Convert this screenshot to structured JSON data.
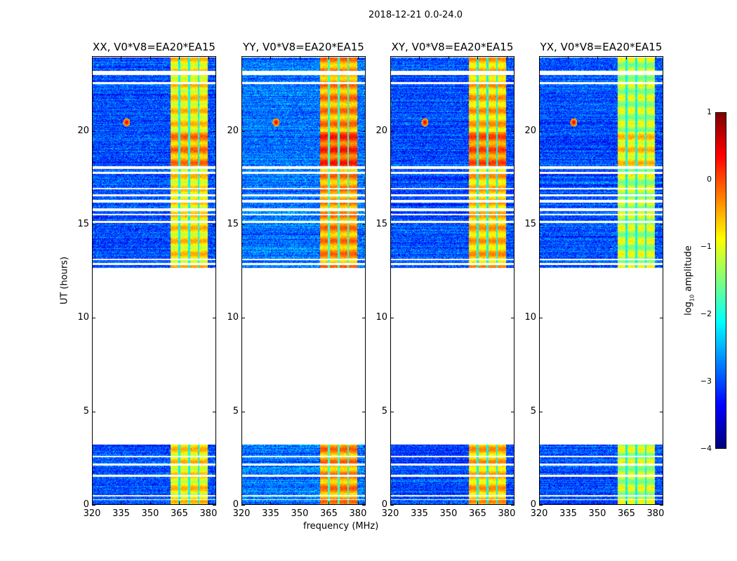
{
  "figure_title": "2018-12-21 0.0-24.0",
  "chart_data": {
    "type": "heatmap",
    "title": "2018-12-21 0.0-24.0",
    "xlabel": "frequency (MHz)",
    "ylabel": "UT (hours)",
    "xlim": [
      320,
      384
    ],
    "ylim": [
      0,
      24
    ],
    "xticks": [
      320,
      335,
      350,
      365,
      380
    ],
    "yticks": [
      0,
      5,
      10,
      15,
      20
    ],
    "panels": [
      {
        "title": "XX, V0*V8=EA20*EA15",
        "band_level": -0.8,
        "background_level": -3.0
      },
      {
        "title": "YY, V0*V8=EA20*EA15",
        "band_level": -0.4,
        "background_level": -2.8
      },
      {
        "title": "XY, V0*V8=EA20*EA15",
        "band_level": -0.6,
        "background_level": -3.0
      },
      {
        "title": "YX, V0*V8=EA20*EA15",
        "band_level": -1.2,
        "background_level": -3.0
      }
    ],
    "bright_band_mhz": [
      360.3,
      379.7
    ],
    "band_gaps_mhz": [
      365,
      370,
      375
    ],
    "rfi_spot": {
      "freq_mhz": 337.5,
      "ut_hours": 20.5,
      "level": 0.6
    },
    "data_time_ranges_hours": [
      [
        0,
        3.2
      ],
      [
        12.7,
        24
      ]
    ],
    "flagged_time_ranges_hours": [
      [
        23.05,
        23.25
      ],
      [
        22.55,
        22.65
      ],
      [
        18.0,
        18.15
      ],
      [
        17.75,
        17.85
      ],
      [
        16.9,
        17.0
      ],
      [
        16.55,
        16.65
      ],
      [
        16.2,
        16.35
      ],
      [
        15.75,
        15.9
      ],
      [
        15.5,
        15.6
      ],
      [
        15.1,
        15.2
      ],
      [
        13.1,
        13.2
      ],
      [
        12.85,
        12.95
      ],
      [
        3.2,
        12.7
      ],
      [
        2.55,
        2.6
      ],
      [
        2.1,
        2.2
      ],
      [
        1.5,
        1.6
      ],
      [
        0.45,
        0.5
      ],
      [
        0.25,
        0.3
      ]
    ],
    "colorbar": {
      "label": "log10 amplitude",
      "label_base": "log",
      "label_sub": "10",
      "label_rest": " amplitude",
      "colormap": "jet",
      "vmin": -4,
      "vmax": 1,
      "ticks": [
        1,
        0,
        -1,
        -2,
        -3,
        -4
      ],
      "tick_labels": [
        "1",
        "0",
        "−1",
        "−2",
        "−3",
        "−4"
      ]
    }
  }
}
